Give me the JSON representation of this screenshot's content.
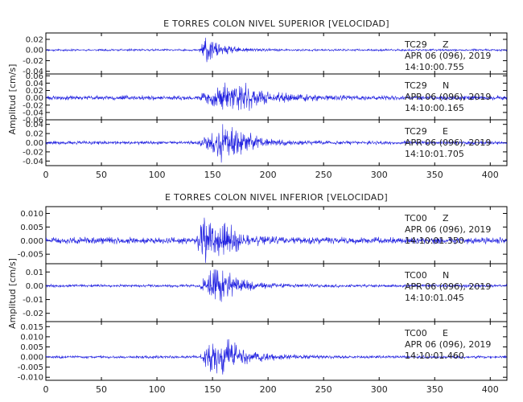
{
  "chart_data": [
    {
      "type": "line",
      "title": "E TORRES COLON NIVEL SUPERIOR [VELOCIDAD]",
      "ylabel": "Amplitud [cm/s]",
      "xlim": [
        0,
        415
      ],
      "x_ticks": [
        0,
        50,
        100,
        150,
        200,
        250,
        300,
        350,
        400
      ],
      "line_color": "#1f1fe0",
      "panels": [
        {
          "station": "TC29",
          "component": "Z",
          "date": "APR 06 (096), 2019",
          "time": "14:10:00.755",
          "ylim": [
            -0.045,
            0.032
          ],
          "y_ticks": [
            0.02,
            0.0,
            -0.02,
            -0.04
          ],
          "y_tick_labels": [
            "0.02",
            "0.00",
            "-0.02",
            "-0.04"
          ],
          "noise_amp": 0.0022,
          "coda_amp": 0.028,
          "onset": 138,
          "peak": 141,
          "decay": 18,
          "secondary": null,
          "seed": 11
        },
        {
          "station": "TC29",
          "component": "N",
          "date": "APR 06 (096), 2019",
          "time": "14:10:00.165",
          "ylim": [
            -0.06,
            0.065
          ],
          "y_ticks": [
            0.06,
            0.04,
            0.02,
            0.0,
            -0.02,
            -0.04,
            -0.06
          ],
          "y_tick_labels": [
            "0.06",
            "0.04",
            "0.02",
            "0.00",
            "-0.02",
            "-0.04",
            "-0.06"
          ],
          "noise_amp": 0.007,
          "coda_amp": 0.038,
          "onset": 136,
          "peak": 165,
          "decay": 30,
          "secondary": 165,
          "seed": 23
        },
        {
          "station": "TC29",
          "component": "E",
          "date": "APR 06 (096), 2019",
          "time": "14:10:01.705",
          "ylim": [
            -0.05,
            0.05
          ],
          "y_ticks": [
            0.04,
            0.02,
            0.0,
            -0.02,
            -0.04
          ],
          "y_tick_labels": [
            "0.04",
            "0.02",
            "0.00",
            "-0.02",
            "-0.04"
          ],
          "noise_amp": 0.0045,
          "coda_amp": 0.036,
          "onset": 136,
          "peak": 158,
          "decay": 24,
          "secondary": 162,
          "seed": 37
        }
      ]
    },
    {
      "type": "line",
      "title": "E TORRES COLON NIVEL INFERIOR [VELOCIDAD]",
      "ylabel": "Amplitud [cm/s]",
      "xlim": [
        0,
        415
      ],
      "x_ticks": [
        0,
        50,
        100,
        150,
        200,
        250,
        300,
        350,
        400
      ],
      "line_color": "#1f1fe0",
      "panels": [
        {
          "station": "TC00",
          "component": "Z",
          "date": "APR 06 (096), 2019",
          "time": "14:10:01.350",
          "ylim": [
            -0.0085,
            0.0125
          ],
          "y_ticks": [
            0.01,
            0.005,
            0.0,
            -0.005
          ],
          "y_tick_labels": [
            "0.010",
            "0.005",
            "0.000",
            "-0.005"
          ],
          "noise_amp": 0.0014,
          "coda_amp": 0.0095,
          "onset": 136,
          "peak": 140,
          "decay": 20,
          "secondary": 150,
          "seed": 51
        },
        {
          "station": "TC00",
          "component": "N",
          "date": "APR 06 (096), 2019",
          "time": "14:10:01.045",
          "ylim": [
            -0.026,
            0.016
          ],
          "y_ticks": [
            0.01,
            0.0,
            -0.01,
            -0.02
          ],
          "y_tick_labels": [
            "0.01",
            "0.00",
            "-0.01",
            "-0.02"
          ],
          "noise_amp": 0.0012,
          "coda_amp": 0.011,
          "onset": 137,
          "peak": 150,
          "decay": 22,
          "secondary": 152,
          "seed": 67
        },
        {
          "station": "TC00",
          "component": "E",
          "date": "APR 06 (096), 2019",
          "time": "14:10:01.460",
          "ylim": [
            -0.0115,
            0.0175
          ],
          "y_ticks": [
            0.015,
            0.01,
            0.005,
            0.0,
            -0.005,
            -0.01
          ],
          "y_tick_labels": [
            "0.015",
            "0.010",
            "0.005",
            "0.000",
            "-0.005",
            "-0.010"
          ],
          "noise_amp": 0.0008,
          "coda_amp": 0.009,
          "onset": 138,
          "peak": 152,
          "decay": 26,
          "secondary": 152,
          "seed": 83
        }
      ]
    }
  ]
}
